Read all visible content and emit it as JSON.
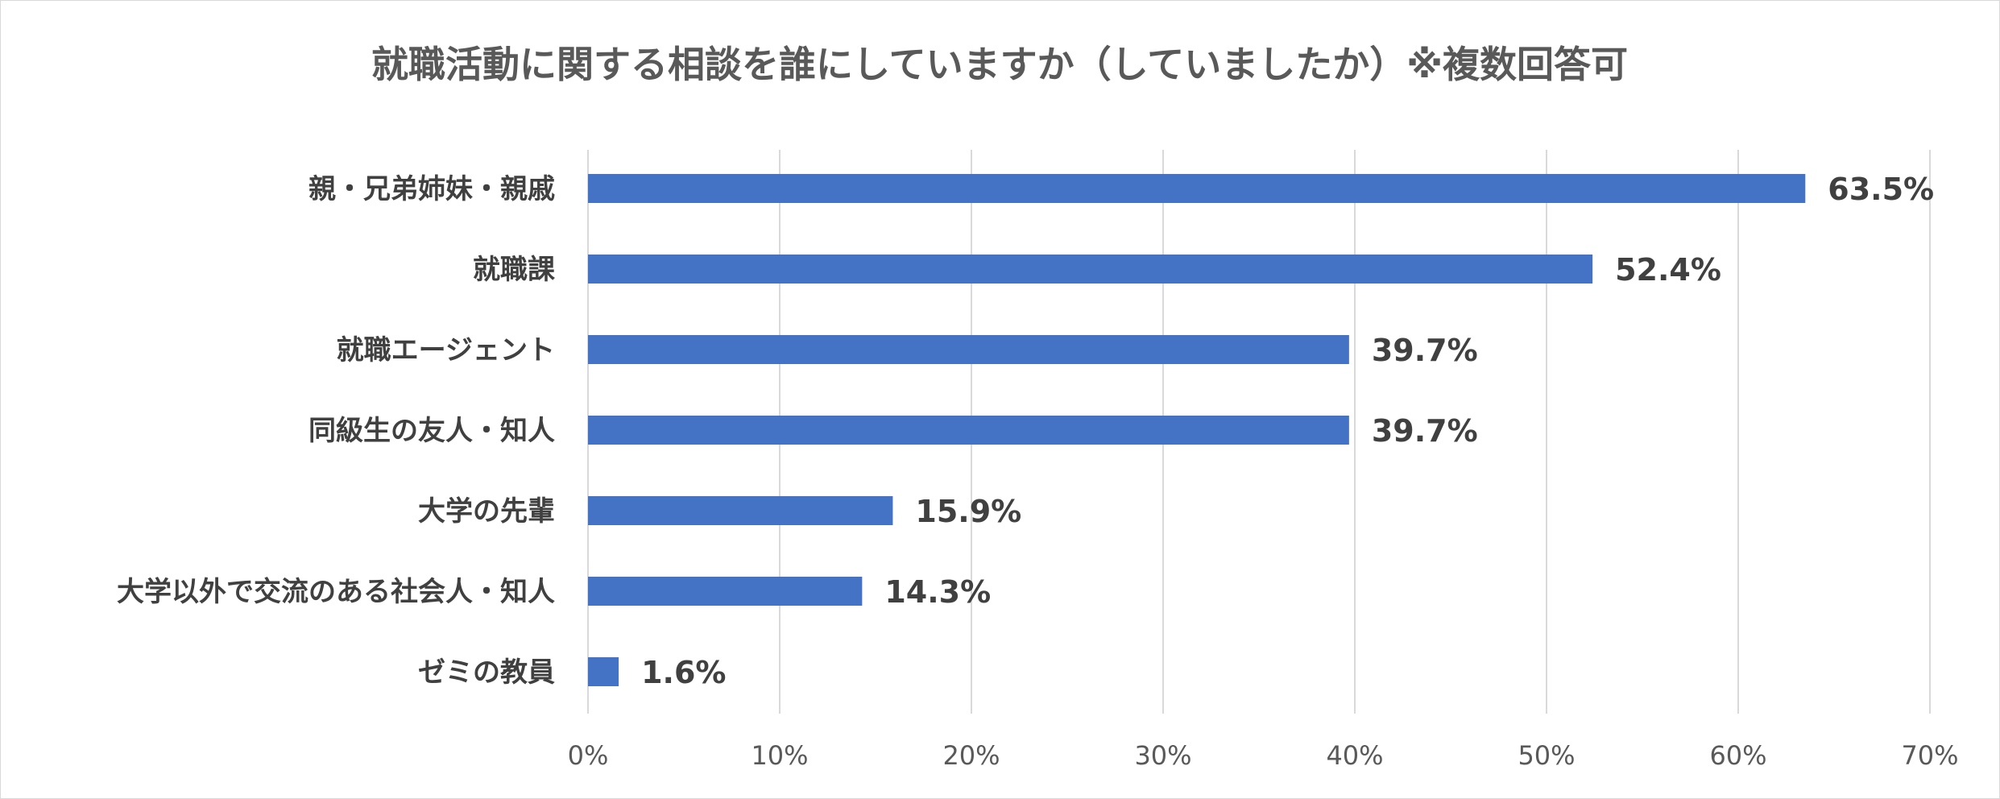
{
  "chart_data": {
    "type": "bar",
    "orientation": "horizontal",
    "title": "就職活動に関する相談を誰にしていますか（していましたか）※複数回答可",
    "categories": [
      "親・兄弟姉妹・親戚",
      "就職課",
      "就職エージェント",
      "同級生の友人・知人",
      "大学の先輩",
      "大学以外で交流のある社会人・知人",
      "ゼミの教員"
    ],
    "values": [
      63.5,
      52.4,
      39.7,
      39.7,
      15.9,
      14.3,
      1.6
    ],
    "data_labels": [
      "63.5%",
      "52.4%",
      "39.7%",
      "39.7%",
      "15.9%",
      "14.3%",
      "1.6%"
    ],
    "x_ticks": [
      "0%",
      "10%",
      "20%",
      "30%",
      "40%",
      "50%",
      "60%",
      "70%"
    ],
    "xlim": [
      0,
      70
    ],
    "grid": true,
    "legend": "none",
    "bar_color": "#4472c4",
    "gridline_color": "#d9d9d9"
  }
}
